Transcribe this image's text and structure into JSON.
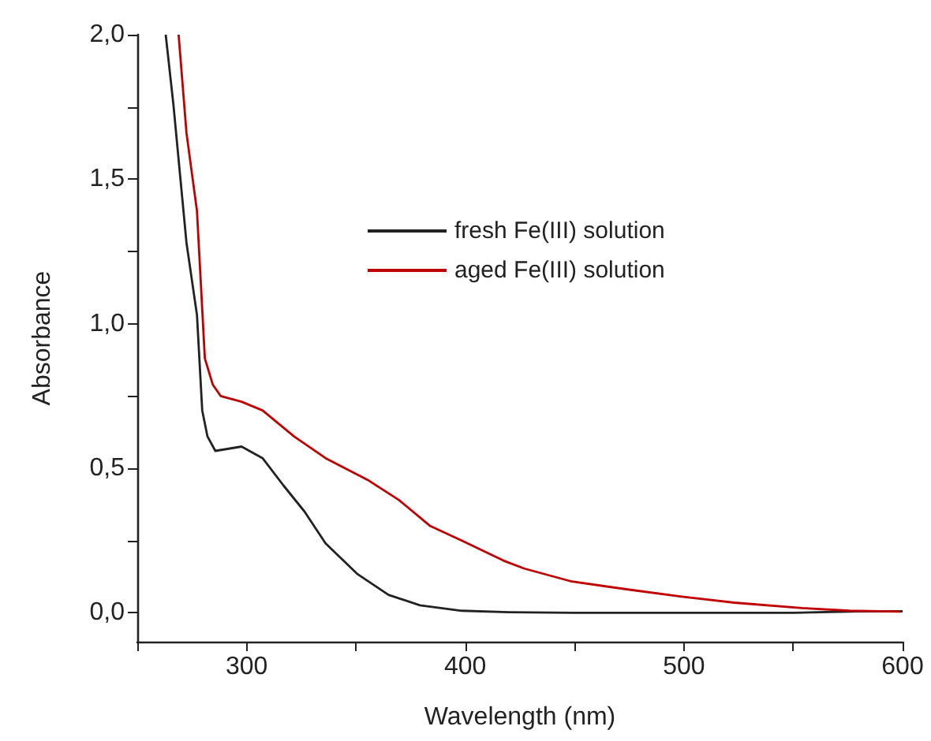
{
  "chart_data": {
    "type": "line",
    "xlabel": "Wavelength (nm)",
    "ylabel": "Absorbance",
    "xlim": [
      250,
      600
    ],
    "xticks": [
      {
        "value": 250,
        "label": null
      },
      300,
      {
        "value": 350,
        "label": null
      },
      400,
      {
        "value": 450,
        "label": null
      },
      500,
      {
        "value": 550,
        "label": null
      },
      600
    ],
    "ylim": [
      -0.1,
      2.0
    ],
    "yticks": [
      {
        "value": 0,
        "label": "0,0"
      },
      {
        "value": 0.25,
        "label": null
      },
      {
        "value": 0.5,
        "label": "0,5"
      },
      {
        "value": 0.75,
        "label": null
      },
      {
        "value": 1.0,
        "label": "1,0"
      },
      {
        "value": 1.25,
        "label": null
      },
      {
        "value": 1.5,
        "label": "1,5"
      },
      {
        "value": 1.75,
        "label": null
      },
      {
        "value": 2.0,
        "label": "2,0"
      }
    ],
    "grid": false,
    "legend": "top right",
    "marker": "none",
    "line_style": "solid",
    "series": [
      {
        "name": "fresh Fe(III) solution",
        "color": "#222222",
        "x": [
          263,
          266.5,
          272.5,
          277.3,
          279.7,
          282.1,
          285.7,
          297.7,
          307.3,
          316.9,
          326.5,
          336.1,
          350.5,
          364.9,
          379.3,
          398.4,
          420,
          450,
          500,
          550,
          580,
          600
        ],
        "values": [
          2.0,
          1.76,
          1.28,
          1.03,
          0.7,
          0.61,
          0.56,
          0.575,
          0.535,
          0.44,
          0.35,
          0.24,
          0.135,
          0.062,
          0.026,
          0.007,
          0.002,
          0.0,
          0.0,
          0.0,
          0.005,
          0.005
        ]
      },
      {
        "name": "aged Fe(III) solution",
        "color": "#c00000",
        "x": [
          268.9,
          272.5,
          277.3,
          280.9,
          284.5,
          288.1,
          297.7,
          307.3,
          321.7,
          336.1,
          355.3,
          369.7,
          384,
          398.4,
          417.6,
          427,
          448.8,
          475,
          499,
          523,
          554,
          576,
          599
        ],
        "values": [
          2.0,
          1.66,
          1.39,
          0.88,
          0.79,
          0.75,
          0.73,
          0.7,
          0.61,
          0.535,
          0.46,
          0.39,
          0.3,
          0.25,
          0.18,
          0.153,
          0.108,
          0.08,
          0.056,
          0.035,
          0.016,
          0.007,
          0.004
        ]
      }
    ]
  }
}
